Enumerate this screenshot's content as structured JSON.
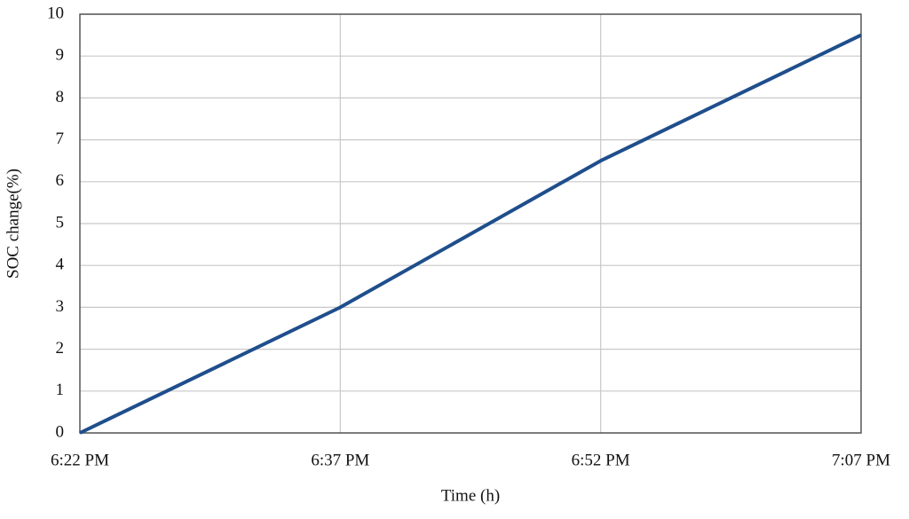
{
  "chart_data": {
    "type": "line",
    "xlabel": "Time (h)",
    "ylabel": "SOC change(%)",
    "categories": [
      "6:22 PM",
      "6:37 PM",
      "6:52 PM",
      "7:07 PM"
    ],
    "values": [
      0,
      3,
      6.5,
      9.5
    ],
    "color": "#1f4e8c",
    "ylim": [
      0,
      10
    ],
    "yticks": [
      0,
      1,
      2,
      3,
      4,
      5,
      6,
      7,
      8,
      9,
      10
    ],
    "grid": true
  }
}
